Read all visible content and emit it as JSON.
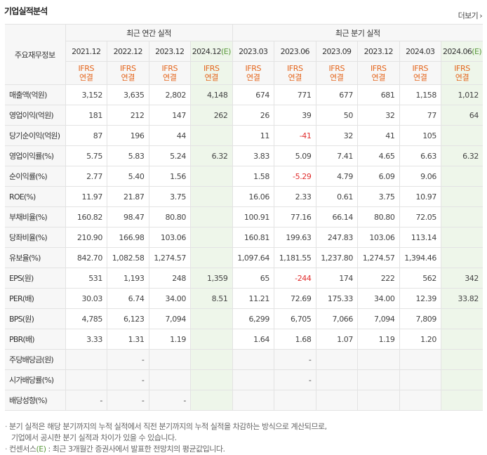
{
  "header": {
    "title": "기업실적분석",
    "more_label": "더보기"
  },
  "table": {
    "row_header_label": "주요재무정보",
    "annual_label": "최근 연간 실적",
    "quarter_label": "최근 분기 실적",
    "periods": [
      {
        "label": "2021.12",
        "est": false
      },
      {
        "label": "2022.12",
        "est": false
      },
      {
        "label": "2023.12",
        "est": false
      },
      {
        "label": "2024.12",
        "est": true
      },
      {
        "label": "2023.03",
        "est": false
      },
      {
        "label": "2023.06",
        "est": false
      },
      {
        "label": "2023.09",
        "est": false
      },
      {
        "label": "2023.12",
        "est": false
      },
      {
        "label": "2024.03",
        "est": false
      },
      {
        "label": "2024.06",
        "est": true
      }
    ],
    "est_mark": "(E)",
    "basis_line1": "IFRS",
    "basis_line2": "연결",
    "rows": [
      {
        "label": "매출액(억원)",
        "values": [
          "3,152",
          "3,635",
          "2,802",
          "4,148",
          "674",
          "771",
          "677",
          "681",
          "1,158",
          "1,012"
        ]
      },
      {
        "label": "영업이익(억원)",
        "values": [
          "181",
          "212",
          "147",
          "262",
          "26",
          "39",
          "50",
          "32",
          "77",
          "64"
        ]
      },
      {
        "label": "당기순이익(억원)",
        "values": [
          "87",
          "196",
          "44",
          "",
          "11",
          "-41",
          "32",
          "41",
          "105",
          ""
        ]
      },
      {
        "label": "영업이익률(%)",
        "values": [
          "5.75",
          "5.83",
          "5.24",
          "6.32",
          "3.83",
          "5.09",
          "7.41",
          "4.65",
          "6.63",
          "6.32"
        ]
      },
      {
        "label": "순이익률(%)",
        "values": [
          "2.77",
          "5.40",
          "1.56",
          "",
          "1.58",
          "-5.29",
          "4.79",
          "6.09",
          "9.06",
          ""
        ]
      },
      {
        "label": "ROE(%)",
        "values": [
          "11.97",
          "21.87",
          "3.75",
          "",
          "16.06",
          "2.33",
          "0.61",
          "3.75",
          "10.97",
          ""
        ]
      },
      {
        "label": "부채비율(%)",
        "values": [
          "160.82",
          "98.47",
          "80.80",
          "",
          "100.91",
          "77.16",
          "66.14",
          "80.80",
          "72.05",
          ""
        ]
      },
      {
        "label": "당좌비율(%)",
        "values": [
          "210.90",
          "166.98",
          "103.06",
          "",
          "160.81",
          "199.63",
          "247.83",
          "103.06",
          "113.14",
          ""
        ]
      },
      {
        "label": "유보율(%)",
        "values": [
          "842.70",
          "1,082.58",
          "1,274.57",
          "",
          "1,097.64",
          "1,181.55",
          "1,237.80",
          "1,274.57",
          "1,394.46",
          ""
        ]
      },
      {
        "label": "EPS(원)",
        "values": [
          "531",
          "1,193",
          "248",
          "1,359",
          "65",
          "-244",
          "174",
          "222",
          "562",
          "342"
        ]
      },
      {
        "label": "PER(배)",
        "values": [
          "30.03",
          "6.74",
          "34.00",
          "8.51",
          "11.21",
          "72.69",
          "175.33",
          "34.00",
          "12.39",
          "33.82"
        ]
      },
      {
        "label": "BPS(원)",
        "values": [
          "4,785",
          "6,123",
          "7,094",
          "",
          "6,299",
          "6,705",
          "7,066",
          "7,094",
          "7,809",
          ""
        ]
      },
      {
        "label": "PBR(배)",
        "values": [
          "3.33",
          "1.31",
          "1.19",
          "",
          "1.64",
          "1.68",
          "1.07",
          "1.19",
          "1.20",
          ""
        ]
      },
      {
        "label": "주당배당금(원)",
        "values": [
          "",
          "-",
          "",
          "",
          "",
          "-",
          "",
          "",
          "",
          ""
        ]
      },
      {
        "label": "시가배당률(%)",
        "values": [
          "",
          "-",
          "",
          "",
          "",
          "-",
          "",
          "",
          "",
          ""
        ]
      },
      {
        "label": "배당성향(%)",
        "values": [
          "-",
          "-",
          "-",
          "",
          "",
          "",
          "",
          "",
          "",
          ""
        ]
      }
    ]
  },
  "notes": {
    "bullet": "·",
    "line1": "분기 실적은 해당 분기까지의 누적 실적에서 직전 분기까지의 누적 실적을 차감하는 방식으로 계산되므로,",
    "line2": "기업에서 공시한 분기 실적과 차이가 있을 수 있습니다.",
    "line3_prefix": "컨센서스",
    "line3_mark": "(E)",
    "line3_suffix": ": 최근 3개월간 증권사에서 발표한 전망치의 평균값입니다."
  }
}
